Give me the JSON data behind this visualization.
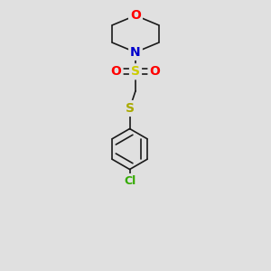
{
  "background_color": "#e0e0e0",
  "bond_color": "#1a1a1a",
  "atom_colors": {
    "O": "#ff0000",
    "N": "#0000cc",
    "S_sulfonyl": "#cccc00",
    "S_thio": "#aaaa00",
    "Cl": "#33aa00",
    "C": "#1a1a1a"
  },
  "bond_width": 1.2,
  "font_size_atoms": 9,
  "figsize": [
    3.0,
    3.0
  ],
  "dpi": 100
}
